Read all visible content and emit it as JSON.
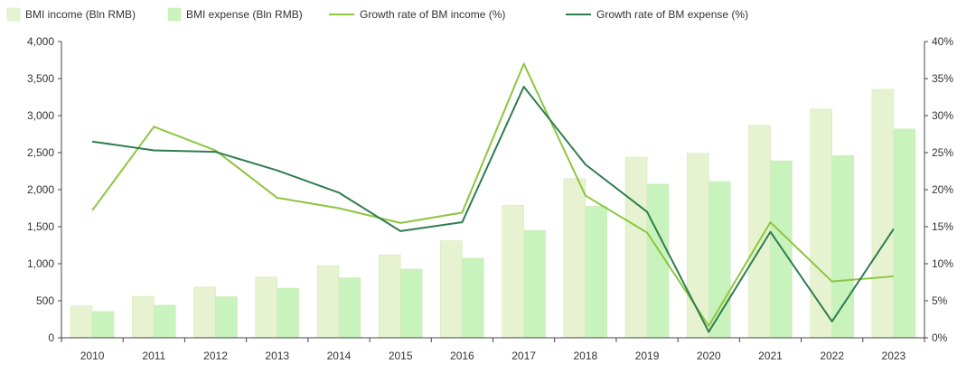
{
  "chart_data": {
    "type": "bar",
    "categories": [
      "2010",
      "2011",
      "2012",
      "2013",
      "2014",
      "2015",
      "2016",
      "2017",
      "2018",
      "2019",
      "2020",
      "2021",
      "2022",
      "2023"
    ],
    "series": [
      {
        "name": "BMI income (Bln RMB)",
        "type": "bar",
        "axis": "left",
        "color": "#e6f2d0",
        "values": [
          430,
          560,
          685,
          820,
          970,
          1120,
          1310,
          1790,
          2150,
          2440,
          2490,
          2870,
          3090,
          3355
        ]
      },
      {
        "name": "BMI expense (Bln RMB)",
        "type": "bar",
        "axis": "left",
        "color": "#c9f3bd",
        "values": [
          355,
          440,
          555,
          670,
          810,
          930,
          1075,
          1450,
          1775,
          2075,
          2110,
          2390,
          2460,
          2820
        ]
      },
      {
        "name": "Growth rate of BM income (%)",
        "type": "line",
        "axis": "right",
        "color": "#8cc63f",
        "values": [
          17.2,
          28.5,
          25.3,
          18.9,
          17.5,
          15.5,
          16.9,
          37.0,
          19.2,
          14.2,
          1.6,
          15.6,
          7.6,
          8.3
        ]
      },
      {
        "name": "Growth rate of BM expense (%)",
        "type": "line",
        "axis": "right",
        "color": "#2e7d4f",
        "values": [
          26.5,
          25.3,
          25.1,
          22.6,
          19.6,
          14.4,
          15.6,
          33.9,
          23.4,
          17.0,
          0.8,
          14.3,
          2.2,
          14.7
        ]
      }
    ],
    "y_left": {
      "min": 0,
      "max": 4000,
      "step": 500,
      "tick_labels": [
        "0",
        "500",
        "1,000",
        "1,500",
        "2,000",
        "2,500",
        "3,000",
        "3,500",
        "4,000"
      ]
    },
    "y_right": {
      "min": 0,
      "max": 40,
      "step": 5,
      "tick_labels": [
        "0%",
        "5%",
        "10%",
        "15%",
        "20%",
        "25%",
        "30%",
        "35%",
        "40%"
      ]
    },
    "grid": false,
    "legend_position": "top-left"
  }
}
